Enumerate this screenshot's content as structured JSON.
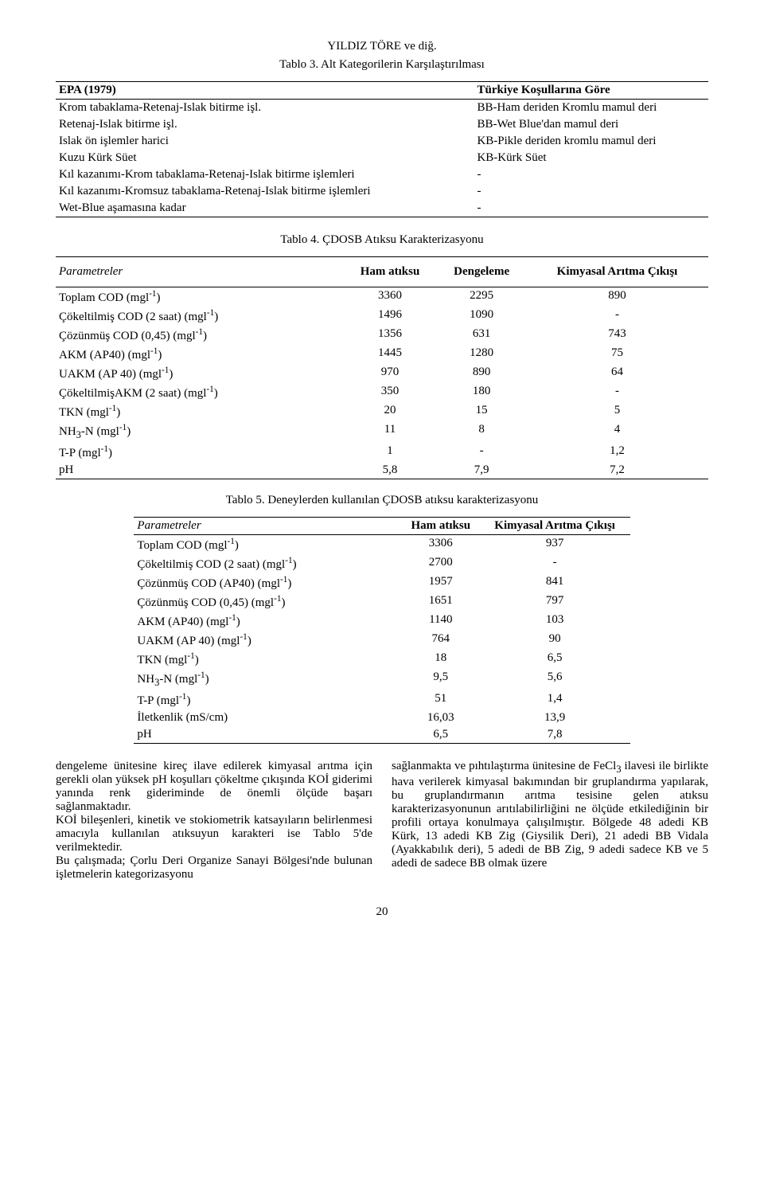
{
  "header": {
    "author": "YILDIZ TÖRE ve diğ.",
    "table3_caption": "Tablo 3. Alt Kategorilerin Karşılaştırılması",
    "table4_caption": "Tablo 4. ÇDOSB Atıksu Karakterizasyonu",
    "table5_caption": "Tablo 5. Deneylerden kullanılan ÇDOSB atıksu karakterizasyonu"
  },
  "table3": {
    "left_header": "EPA (1979)",
    "right_header": "Türkiye Koşullarına Göre",
    "rows": [
      [
        "Krom tabaklama-Retenaj-Islak bitirme işl.",
        "BB-Ham deriden Kromlu mamul deri"
      ],
      [
        "Retenaj-Islak bitirme işl.",
        "BB-Wet Blue'dan mamul deri"
      ],
      [
        "Islak ön işlemler harici",
        "KB-Pikle deriden kromlu mamul deri"
      ],
      [
        "Kuzu Kürk Süet",
        "KB-Kürk Süet"
      ],
      [
        "Kıl kazanımı-Krom tabaklama-Retenaj-Islak bitirme işlemleri",
        "-"
      ],
      [
        "Kıl kazanımı-Kromsuz tabaklama-Retenaj-Islak bitirme işlemleri",
        "-"
      ],
      [
        "Wet-Blue aşamasına kadar",
        "-"
      ]
    ]
  },
  "table4": {
    "col_headers": [
      "Parametreler",
      "Ham atıksu",
      "Dengeleme",
      "Kimyasal Arıtma Çıkışı"
    ],
    "rows": [
      [
        "Toplam COD (mgl⁻¹)",
        "3360",
        "2295",
        "890"
      ],
      [
        "Çökeltilmiş COD (2 saat) (mgl⁻¹)",
        "1496",
        "1090",
        "-"
      ],
      [
        "Çözünmüş COD (0,45) (mgl⁻¹)",
        "1356",
        "631",
        "743"
      ],
      [
        "AKM (AP40) (mgl⁻¹)",
        "1445",
        "1280",
        "75"
      ],
      [
        "UAKM (AP 40) (mgl⁻¹)",
        "970",
        "890",
        "64"
      ],
      [
        "ÇökeltilmişAKM (2 saat) (mgl⁻¹)",
        "350",
        "180",
        "-"
      ],
      [
        "TKN (mgl⁻¹)",
        "20",
        "15",
        "5"
      ],
      [
        "NH₃-N (mgl⁻¹)",
        "11",
        "8",
        "4"
      ],
      [
        "T-P (mgl⁻¹)",
        "1",
        "-",
        "1,2"
      ],
      [
        "pH",
        "5,8",
        "7,9",
        "7,2"
      ]
    ]
  },
  "table5": {
    "col_headers": [
      "Parametreler",
      "Ham atıksu",
      "Kimyasal Arıtma Çıkışı"
    ],
    "rows": [
      [
        "Toplam COD (mgl⁻¹)",
        "3306",
        "937"
      ],
      [
        "Çökeltilmiş COD (2 saat) (mgl⁻¹)",
        "2700",
        "-"
      ],
      [
        "Çözünmüş COD (AP40) (mgl⁻¹)",
        "1957",
        "841"
      ],
      [
        "Çözünmüş COD (0,45) (mgl⁻¹)",
        "1651",
        "797"
      ],
      [
        "AKM (AP40) (mgl⁻¹)",
        "1140",
        "103"
      ],
      [
        "UAKM (AP 40) (mgl⁻¹)",
        "764",
        "90"
      ],
      [
        "TKN (mgl⁻¹)",
        "18",
        "6,5"
      ],
      [
        "NH₃-N (mgl⁻¹)",
        "9,5",
        "5,6"
      ],
      [
        "T-P (mgl⁻¹)",
        "51",
        "1,4"
      ],
      [
        "İletkenlik (mS/cm)",
        "16,03",
        "13,9"
      ],
      [
        "pH",
        "6,5",
        "7,8"
      ]
    ]
  },
  "body": {
    "left": "dengeleme ünitesine kireç ilave edilerek kimyasal arıtma için gerekli olan yüksek pH koşulları çökeltme çıkışında KOİ giderimi yanında renk gideriminde de önemli ölçüde başarı sağlanmaktadır.\nKOİ bileşenleri, kinetik ve stokiometrik katsayıların belirlenmesi amacıyla kullanılan atıksuyun karakteri ise Tablo 5'de verilmektedir.\nBu çalışmada; Çorlu Deri Organize Sanayi Bölgesi'nde bulunan işletmelerin kategorizasyonu",
    "right": "sağlanmakta ve pıhtılaştırma ünitesine de FeCl₃ ilavesi ile birlikte hava verilerek kimyasal bakımından bir gruplandırma yapılarak, bu gruplandırmanın arıtma tesisine gelen atıksu karakterizasyonunun arıtılabilirliğini ne ölçüde etkilediğinin bir profili ortaya konulmaya çalışılmıştır. Bölgede 48 adedi KB Kürk, 13 adedi KB Zig (Giysilik Deri), 21 adedi BB Vidala (Ayakkabılık deri), 5 adedi de BB Zig, 9 adedi sadece KB ve 5 adedi de sadece BB olmak üzere"
  },
  "page_number": "20"
}
